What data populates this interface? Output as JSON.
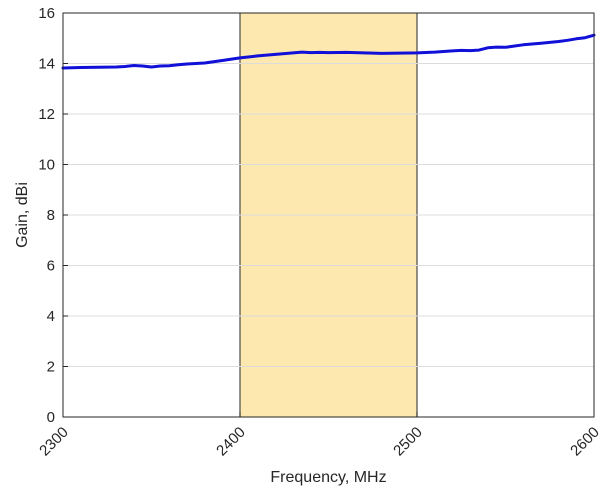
{
  "chart_data": {
    "type": "line",
    "xlabel": "Frequency, MHz",
    "ylabel": "Gain, dBi",
    "xlim": [
      2300,
      2600
    ],
    "ylim": [
      0,
      16
    ],
    "xticks": [
      "2300",
      "2400",
      "2500",
      "2600"
    ],
    "yticks": [
      "0",
      "2",
      "4",
      "6",
      "8",
      "10",
      "12",
      "14",
      "16"
    ],
    "grid": "horizontal",
    "shaded_band": {
      "x": [
        2400,
        2500
      ],
      "color": "#fde8b0"
    },
    "series": [
      {
        "color": "#1010d8",
        "x": [
          2300,
          2310,
          2320,
          2330,
          2335,
          2340,
          2345,
          2350,
          2355,
          2360,
          2365,
          2370,
          2380,
          2390,
          2400,
          2410,
          2420,
          2430,
          2435,
          2440,
          2445,
          2450,
          2460,
          2470,
          2480,
          2490,
          2500,
          2510,
          2520,
          2525,
          2530,
          2535,
          2540,
          2545,
          2550,
          2560,
          2570,
          2580,
          2585,
          2590,
          2595,
          2600
        ],
        "values": [
          13.82,
          13.84,
          13.85,
          13.86,
          13.88,
          13.92,
          13.9,
          13.86,
          13.9,
          13.91,
          13.95,
          13.98,
          14.02,
          14.12,
          14.22,
          14.3,
          14.36,
          14.42,
          14.45,
          14.43,
          14.44,
          14.43,
          14.44,
          14.42,
          14.4,
          14.41,
          14.42,
          14.45,
          14.5,
          14.52,
          14.51,
          14.53,
          14.62,
          14.65,
          14.64,
          14.74,
          14.8,
          14.87,
          14.92,
          14.98,
          15.02,
          15.12
        ]
      }
    ]
  }
}
